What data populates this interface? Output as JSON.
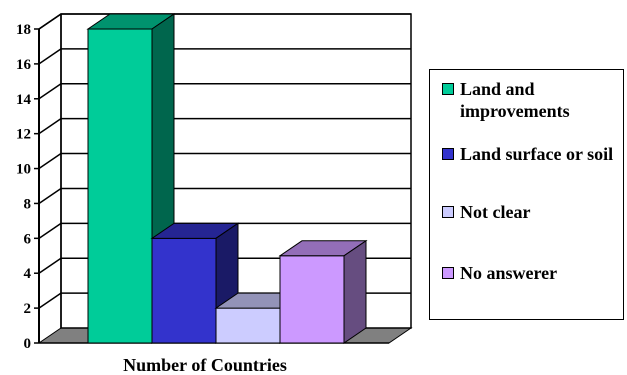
{
  "chart_data": {
    "type": "bar",
    "style": "3d",
    "title": "",
    "xlabel": "Number of Countries",
    "ylabel": "",
    "ylim": [
      0,
      18
    ],
    "yticks": [
      0,
      2,
      4,
      6,
      8,
      10,
      12,
      14,
      16,
      18
    ],
    "grid": true,
    "legend_position": "right",
    "series": [
      {
        "name": "Land and improvements",
        "value": 18,
        "color": "#00cc99"
      },
      {
        "name": "Land surface or soil",
        "value": 6,
        "color": "#3333cc"
      },
      {
        "name": "Not clear",
        "value": 2,
        "color": "#ccccff"
      },
      {
        "name": "No answerer",
        "value": 5,
        "color": "#cc99ff"
      }
    ]
  }
}
